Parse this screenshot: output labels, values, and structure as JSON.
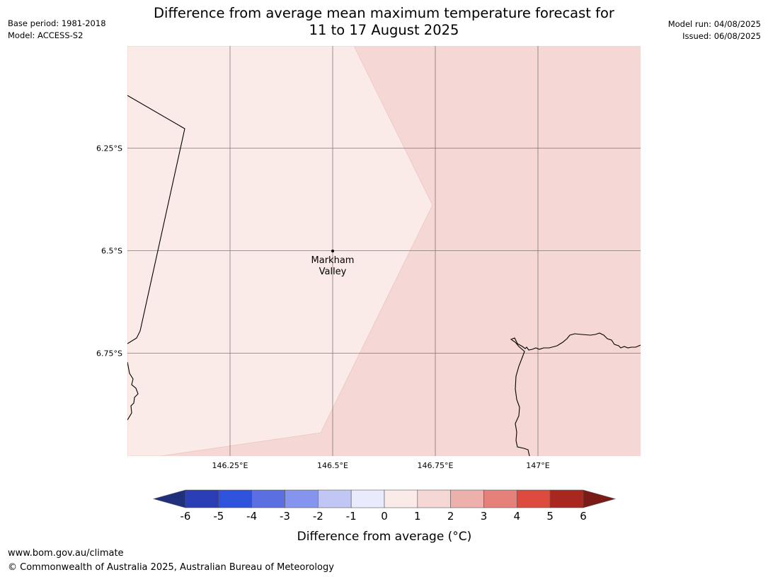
{
  "header": {
    "title_line1": "Difference from average mean maximum temperature forecast for",
    "title_line2": "11 to 17 August 2025",
    "base_period": "Base period: 1981-2018",
    "model": "Model: ACCESS-S2",
    "model_run": "Model run: 04/08/2025",
    "issued": "Issued: 06/08/2025"
  },
  "map": {
    "lon_labels": [
      "146.25°E",
      "146.5°E",
      "146.75°E",
      "147°E"
    ],
    "lat_labels": [
      "6.25°S",
      "6.5°S",
      "6.75°S"
    ],
    "place": {
      "name_line1": "Markham",
      "name_line2": "Valley"
    },
    "fill_colors": {
      "range_0_1": "#fbebe8",
      "range_1_2": "#f5d8d5"
    }
  },
  "colorbar": {
    "ticks": [
      "-6",
      "-5",
      "-4",
      "-3",
      "-2",
      "-1",
      "0",
      "1",
      "2",
      "3",
      "4",
      "5",
      "6"
    ],
    "label": "Difference from average (°C)",
    "colors": [
      "#1f2f7a",
      "#2a3db5",
      "#2f52dc",
      "#5b6fe2",
      "#8594ec",
      "#c0c7f5",
      "#e9ebfc",
      "#fbebe8",
      "#f5d8d5",
      "#eeb0aa",
      "#e6807a",
      "#dd4a3e",
      "#a82820",
      "#7a1b16"
    ]
  },
  "footer": {
    "url": "www.bom.gov.au/climate",
    "copyright": "© Commonwealth of Australia 2025, Australian Bureau of Meteorology"
  }
}
